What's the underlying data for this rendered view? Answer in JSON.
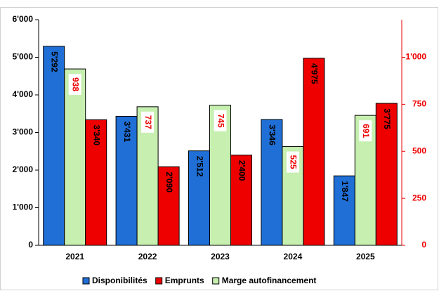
{
  "chart_data": {
    "type": "bar",
    "categories": [
      "2021",
      "2022",
      "2023",
      "2024",
      "2025"
    ],
    "series": [
      {
        "name": "Disponibilités",
        "color": "#1f6fd6",
        "values": [
          5292,
          3431,
          2512,
          3346,
          1847
        ],
        "value_labels": [
          "5'292",
          "3'431",
          "2'512",
          "3'346",
          "1'847"
        ]
      },
      {
        "name": "Emprunts",
        "color": "#ee0000",
        "values": [
          3340,
          2090,
          2400,
          4975,
          3775
        ],
        "value_labels": [
          "3'340",
          "2'090",
          "2'400",
          "4'975",
          "3'775"
        ]
      },
      {
        "name": "Marge autofinancement",
        "color": "#c6efb0",
        "axis": "y2",
        "values": [
          938,
          737,
          745,
          525,
          691
        ]
      }
    ],
    "ylim": [
      0,
      6000
    ],
    "yticks": [
      0,
      {
        "value": 1000,
        "label": "1'000"
      },
      {
        "value": 2000,
        "label": "2'000"
      },
      {
        "value": 3000,
        "label": "3'000"
      },
      {
        "value": 4000,
        "label": "4'000"
      },
      {
        "value": 5000,
        "label": "5'000"
      },
      {
        "value": 6000,
        "label": "6'000"
      }
    ],
    "y2lim": [
      0,
      1200
    ],
    "y2ticks": [
      0,
      250,
      500,
      750,
      {
        "value": 1000,
        "label": "1'000"
      }
    ],
    "legend": "bottom"
  }
}
